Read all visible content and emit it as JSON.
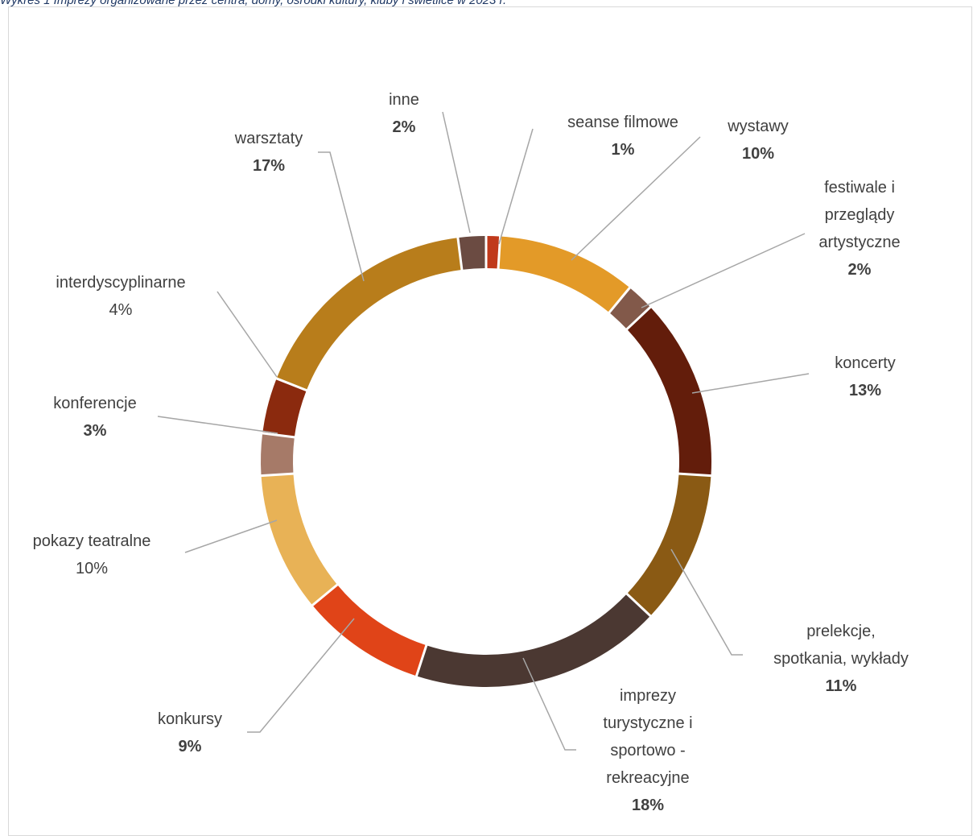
{
  "caption": "Wykres 1 Imprezy organizowane przez centra, domy, ośrodki kultury, kluby i świetlice w 2023 r.",
  "chart_data": {
    "type": "doughnut",
    "title": "",
    "series": [
      {
        "label": "seanse filmowe",
        "lines": [
          "seanse filmowe"
        ],
        "value": 1,
        "pct_label": "1%",
        "bold": true,
        "color": "#c0391b"
      },
      {
        "label": "wystawy",
        "lines": [
          "wystawy"
        ],
        "value": 10,
        "pct_label": "10%",
        "bold": true,
        "color": "#e39a28"
      },
      {
        "label": "festiwale i przeglądy artystyczne",
        "lines": [
          "festiwale i",
          "przeglądy",
          "artystyczne"
        ],
        "value": 2,
        "pct_label": "2%",
        "bold": true,
        "color": "#82594a"
      },
      {
        "label": "koncerty",
        "lines": [
          "koncerty"
        ],
        "value": 13,
        "pct_label": "13%",
        "bold": true,
        "color": "#631d0b"
      },
      {
        "label": "prelekcje, spotkania, wykłady",
        "lines": [
          "prelekcje,",
          "spotkania, wykłady"
        ],
        "value": 11,
        "pct_label": "11%",
        "bold": true,
        "color": "#8a5a14"
      },
      {
        "label": "imprezy turystyczne i sportowo - rekreacyjne",
        "lines": [
          "imprezy",
          "turystyczne i",
          "sportowo -",
          "rekreacyjne"
        ],
        "value": 18,
        "pct_label": "18%",
        "bold": true,
        "color": "#4b3832"
      },
      {
        "label": "konkursy",
        "lines": [
          "konkursy"
        ],
        "value": 9,
        "pct_label": "9%",
        "bold": true,
        "color": "#e04418"
      },
      {
        "label": "pokazy teatralne",
        "lines": [
          "pokazy teatralne"
        ],
        "value": 10,
        "pct_label": "10%",
        "bold": false,
        "color": "#e8b256"
      },
      {
        "label": "konferencje",
        "lines": [
          "konferencje"
        ],
        "value": 3,
        "pct_label": "3%",
        "bold": true,
        "color": "#a67a68"
      },
      {
        "label": "interdyscyplinarne",
        "lines": [
          "interdyscyplinarne"
        ],
        "value": 4,
        "pct_label": "4%",
        "bold": false,
        "color": "#8b2a0e"
      },
      {
        "label": "warsztaty",
        "lines": [
          "warsztaty"
        ],
        "value": 17,
        "pct_label": "17%",
        "bold": true,
        "color": "#b87d1b"
      },
      {
        "label": "inne",
        "lines": [
          "inne"
        ],
        "value": 2,
        "pct_label": "2%",
        "bold": true,
        "color": "#6b4b42"
      }
    ],
    "legend": "none",
    "leader_line_color": "#a6a6a6"
  }
}
